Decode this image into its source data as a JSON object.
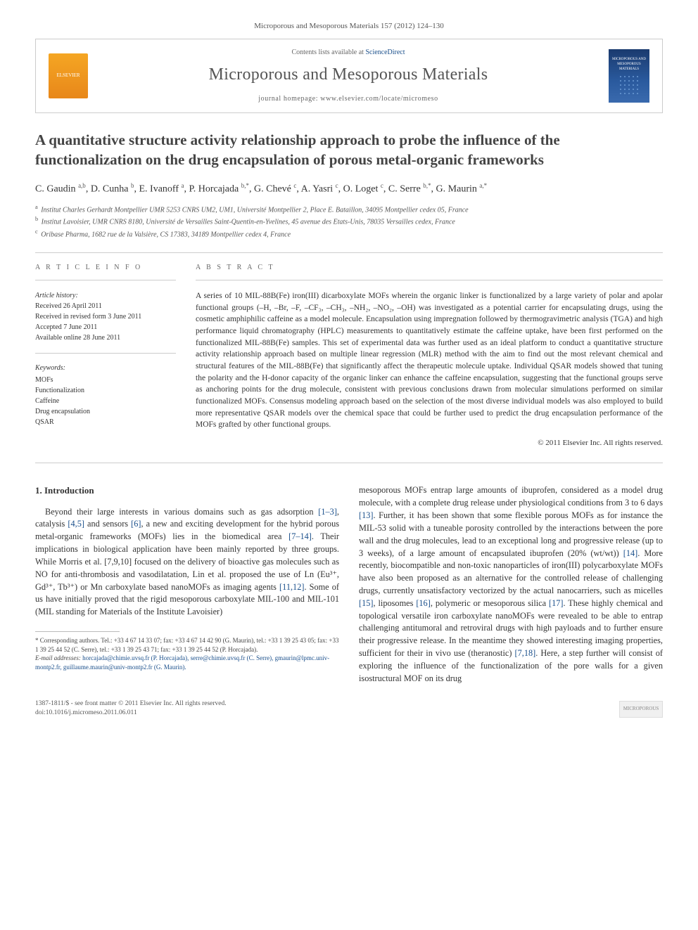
{
  "citation": "Microporous and Mesoporous Materials 157 (2012) 124–130",
  "header": {
    "contents_prefix": "Contents lists available at ",
    "contents_link": "ScienceDirect",
    "journal_name": "Microporous and Mesoporous Materials",
    "homepage_label": "journal homepage: www.elsevier.com/locate/micromeso",
    "elsevier_text": "ELSEVIER",
    "cover_text": "MICROPOROUS AND MESOPOROUS MATERIALS"
  },
  "title": "A quantitative structure activity relationship approach to probe the influence of the functionalization on the drug encapsulation of porous metal-organic frameworks",
  "authors_html": "C. Gaudin <sup>a,b</sup>, D. Cunha <sup>b</sup>, E. Ivanoff <sup>a</sup>, P. Horcajada <sup>b,*</sup>, G. Chevé <sup>c</sup>, A. Yasri <sup>c</sup>, O. Loget <sup>c</sup>, C. Serre <sup>b,*</sup>, G. Maurin <sup>a,*</sup>",
  "affiliations": [
    {
      "sup": "a",
      "text": "Institut Charles Gerhardt Montpellier UMR 5253 CNRS UM2, UM1, Université Montpellier 2, Place E. Bataillon, 34095 Montpellier cedex 05, France"
    },
    {
      "sup": "b",
      "text": "Institut Lavoisier, UMR CNRS 8180, Université de Versailles Saint-Quentin-en-Yvelines, 45 avenue des Etats-Unis, 78035 Versailles cedex, France"
    },
    {
      "sup": "c",
      "text": "Oribase Pharma, 1682 rue de la Valsière, CS 17383, 34189 Montpellier cedex 4, France"
    }
  ],
  "info": {
    "heading": "A R T I C L E   I N F O",
    "history_label": "Article history:",
    "history": [
      "Received 26 April 2011",
      "Received in revised form 3 June 2011",
      "Accepted 7 June 2011",
      "Available online 28 June 2011"
    ],
    "keywords_label": "Keywords:",
    "keywords": [
      "MOFs",
      "Functionalization",
      "Caffeine",
      "Drug encapsulation",
      "QSAR"
    ]
  },
  "abstract": {
    "heading": "A B S T R A C T",
    "text": "A series of 10 MIL-88B(Fe) iron(III) dicarboxylate MOFs wherein the organic linker is functionalized by a large variety of polar and apolar functional groups (–H, –Br, –F, –CF₃, –CH₃, –NH₂, –NO₂, –OH) was investigated as a potential carrier for encapsulating drugs, using the cosmetic amphiphilic caffeine as a model molecule. Encapsulation using impregnation followed by thermogravimetric analysis (TGA) and high performance liquid chromatography (HPLC) measurements to quantitatively estimate the caffeine uptake, have been first performed on the functionalized MIL-88B(Fe) samples. This set of experimental data was further used as an ideal platform to conduct a quantitative structure activity relationship approach based on multiple linear regression (MLR) method with the aim to find out the most relevant chemical and structural features of the MIL-88B(Fe) that significantly affect the therapeutic molecule uptake. Individual QSAR models showed that tuning the polarity and the H-donor capacity of the organic linker can enhance the caffeine encapsulation, suggesting that the functional groups serve as anchoring points for the drug molecule, consistent with previous conclusions drawn from molecular simulations performed on similar functionalized MOFs. Consensus modeling approach based on the selection of the most diverse individual models was also employed to build more representative QSAR models over the chemical space that could be further used to predict the drug encapsulation performance of the MOFs grafted by other functional groups.",
    "copyright": "© 2011 Elsevier Inc. All rights reserved."
  },
  "body": {
    "section_number": "1.",
    "section_title": "Introduction",
    "col1": "Beyond their large interests in various domains such as gas adsorption [1–3], catalysis [4,5] and sensors [6], a new and exciting development for the hybrid porous metal-organic frameworks (MOFs) lies in the biomedical area [7–14]. Their implications in biological application have been mainly reported by three groups. While Morris et al. [7,9,10] focused on the delivery of bioactive gas molecules such as NO for anti-thrombosis and vasodilatation, Lin et al. proposed the use of Ln (Eu³⁺, Gd³⁺, Tb³⁺) or Mn carboxylate based nanoMOFs as imaging agents [11,12]. Some of us have initially proved that the rigid mesoporous carboxylate MIL-100 and MIL-101 (MIL standing for Materials of the Institute Lavoisier)",
    "col2": "mesoporous MOFs entrap large amounts of ibuprofen, considered as a model drug molecule, with a complete drug release under physiological conditions from 3 to 6 days [13]. Further, it has been shown that some flexible porous MOFs as for instance the MIL-53 solid with a tuneable porosity controlled by the interactions between the pore wall and the drug molecules, lead to an exceptional long and progressive release (up to 3 weeks), of a large amount of encapsulated ibuprofen (20% (wt/wt)) [14]. More recently, biocompatible and non-toxic nanoparticles of iron(III) polycarboxylate MOFs have also been proposed as an alternative for the controlled release of challenging drugs, currently unsatisfactory vectorized by the actual nanocarriers, such as micelles [15], liposomes [16], polymeric or mesoporous silica [17]. These highly chemical and topological versatile iron carboxylate nanoMOFs were revealed to be able to entrap challenging antitumoral and retroviral drugs with high payloads and to further ensure their progressive release. In the meantime they showed interesting imaging properties, sufficient for their in vivo use (theranostic) [7,18]. Here, a step further will consist of exploring the influence of the functionalization of the pore walls for a given isostructural MOF on its drug"
  },
  "footnotes": {
    "corr_label": "* Corresponding authors.",
    "corr_text": " Tel.: +33 4 67 14 33 07; fax: +33 4 67 14 42 90 (G. Maurin), tel.: +33 1 39 25 43 05; fax: +33 1 39 25 44 52 (C. Serre), tel.: +33 1 39 25 43 71; fax: +33 1 39 25 44 52 (P. Horcajada).",
    "email_label": "E-mail addresses:",
    "emails": " horcajada@chimie.uvsq.fr (P. Horcajada), serre@chimie.uvsq.fr (C. Serre), gmaurin@lpmc.univ-montp2.fr, guillaume.maurin@univ-montp2.fr (G. Maurin)."
  },
  "footer": {
    "line1": "1387-1811/$ - see front matter © 2011 Elsevier Inc. All rights reserved.",
    "line2": "doi:10.1016/j.micromeso.2011.06.011",
    "logo": "MICROPOROUS"
  },
  "colors": {
    "link": "#1a4f8b",
    "text": "#333333",
    "border": "#cccccc"
  }
}
